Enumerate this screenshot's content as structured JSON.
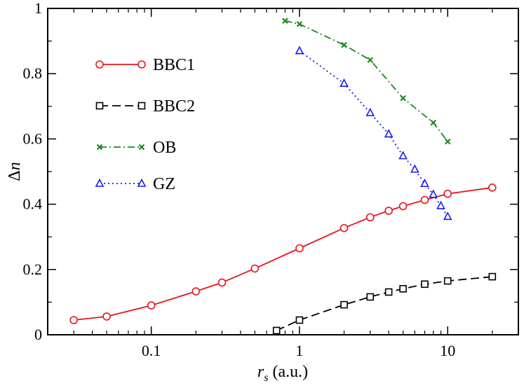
{
  "chart_data": {
    "type": "line",
    "x_scale": "log",
    "xlabel": {
      "main": "r",
      "sub": "s",
      "suffix": " (a.u.)"
    },
    "ylabel": {
      "symbol": "Δ",
      "var": "n"
    },
    "xlim": [
      0.02,
      30
    ],
    "ylim": [
      0,
      1
    ],
    "x_ticks": [
      {
        "value": 0.1,
        "label": "0.1"
      },
      {
        "value": 1,
        "label": "1"
      },
      {
        "value": 10,
        "label": "10"
      }
    ],
    "y_ticks": [
      {
        "value": 0,
        "label": "0"
      },
      {
        "value": 0.2,
        "label": "0.2"
      },
      {
        "value": 0.4,
        "label": "0.4"
      },
      {
        "value": 0.6,
        "label": "0.6"
      },
      {
        "value": 0.8,
        "label": "0.8"
      },
      {
        "value": 1,
        "label": "1"
      }
    ],
    "legend_position": "top-left",
    "series": [
      {
        "name": "BBC1",
        "color": "#e8141c",
        "dash": "solid",
        "marker": "circle",
        "x": [
          0.03,
          0.05,
          0.1,
          0.2,
          0.3,
          0.5,
          1,
          2,
          3,
          4,
          5,
          7,
          10,
          20
        ],
        "y": [
          0.045,
          0.056,
          0.09,
          0.133,
          0.16,
          0.203,
          0.265,
          0.327,
          0.36,
          0.38,
          0.394,
          0.413,
          0.432,
          0.451
        ]
      },
      {
        "name": "BBC2",
        "color": "#000000",
        "dash": "dashed",
        "marker": "square",
        "x": [
          0.7,
          1,
          2,
          3,
          4,
          5,
          7,
          10,
          20
        ],
        "y": [
          0.013,
          0.045,
          0.092,
          0.116,
          0.131,
          0.141,
          0.155,
          0.165,
          0.178
        ]
      },
      {
        "name": "OB",
        "color": "#1a8a1a",
        "dash": "dashdot",
        "marker": "x",
        "x": [
          0.8,
          1,
          2,
          3,
          5,
          8,
          10
        ],
        "y": [
          0.962,
          0.952,
          0.888,
          0.842,
          0.725,
          0.65,
          0.592
        ]
      },
      {
        "name": "GZ",
        "color": "#1a1aee",
        "dash": "dotted",
        "marker": "triangle",
        "x": [
          1,
          2,
          3,
          4,
          5,
          6,
          7,
          8,
          9,
          10
        ],
        "y": [
          0.87,
          0.77,
          0.68,
          0.615,
          0.548,
          0.507,
          0.463,
          0.43,
          0.395,
          0.362
        ]
      }
    ]
  }
}
